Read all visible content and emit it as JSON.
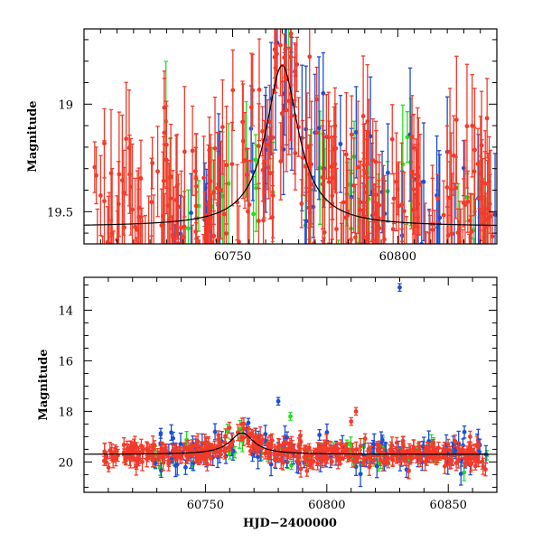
{
  "colors": {
    "red": "#f23b2b",
    "green": "#22e01c",
    "blue": "#1a4fd6",
    "model": "#000000"
  },
  "chart_data": [
    {
      "type": "scatter",
      "panel": "top",
      "title": "",
      "xlabel": "",
      "ylabel": "Magnitude",
      "xlim": [
        60705,
        60830
      ],
      "ylim": [
        19.65,
        18.65
      ],
      "y_inverted": true,
      "xticks": [
        60750,
        60800
      ],
      "xtick_labels": [
        "60750",
        "60800"
      ],
      "yticks": [
        19,
        19.5
      ],
      "ytick_labels": [
        "19",
        "19.5"
      ],
      "grid": false,
      "model_curve": {
        "type": "line",
        "peak_x": 60765,
        "peak_mag": 18.82,
        "baseline_mag": 19.57,
        "width_days": 6
      },
      "series": [
        {
          "color": "red",
          "count": 340,
          "scatter_mag": 0.22,
          "x_range": [
            60708,
            60830
          ]
        },
        {
          "color": "blue",
          "count": 70,
          "scatter_mag": 0.25,
          "x_range": [
            60728,
            60830
          ]
        },
        {
          "color": "green",
          "count": 45,
          "scatter_mag": 0.22,
          "x_range": [
            60728,
            60830
          ]
        }
      ]
    },
    {
      "type": "scatter",
      "panel": "bottom",
      "title": "",
      "xlabel": "HJD−2400000",
      "ylabel": "Magnitude",
      "xlim": [
        60700,
        60870
      ],
      "ylim": [
        21.2,
        12.7
      ],
      "y_inverted": true,
      "xticks": [
        60750,
        60800,
        60850
      ],
      "xtick_labels": [
        "60750",
        "60800",
        "60850"
      ],
      "yticks": [
        14,
        16,
        18,
        20
      ],
      "ytick_labels": [
        "14",
        "16",
        "18",
        "20"
      ],
      "grid": false,
      "model_curve": {
        "type": "line",
        "peak_x": 60765,
        "peak_mag": 18.85,
        "baseline_mag": 19.7,
        "width_days": 6
      },
      "outliers": [
        {
          "x": 60830,
          "y": 13.1,
          "color": "blue"
        },
        {
          "x": 60780,
          "y": 17.6,
          "color": "blue"
        },
        {
          "x": 60785,
          "y": 18.2,
          "color": "green"
        },
        {
          "x": 60812,
          "y": 18.0,
          "color": "red"
        },
        {
          "x": 60810,
          "y": 18.4,
          "color": "red"
        }
      ],
      "series": [
        {
          "color": "red",
          "count": 420,
          "scatter_mag": 0.25,
          "x_range": [
            60708,
            60866
          ]
        },
        {
          "color": "blue",
          "count": 110,
          "scatter_mag": 0.35,
          "x_range": [
            60728,
            60866
          ]
        },
        {
          "color": "green",
          "count": 60,
          "scatter_mag": 0.3,
          "x_range": [
            60728,
            60866
          ]
        }
      ]
    }
  ]
}
